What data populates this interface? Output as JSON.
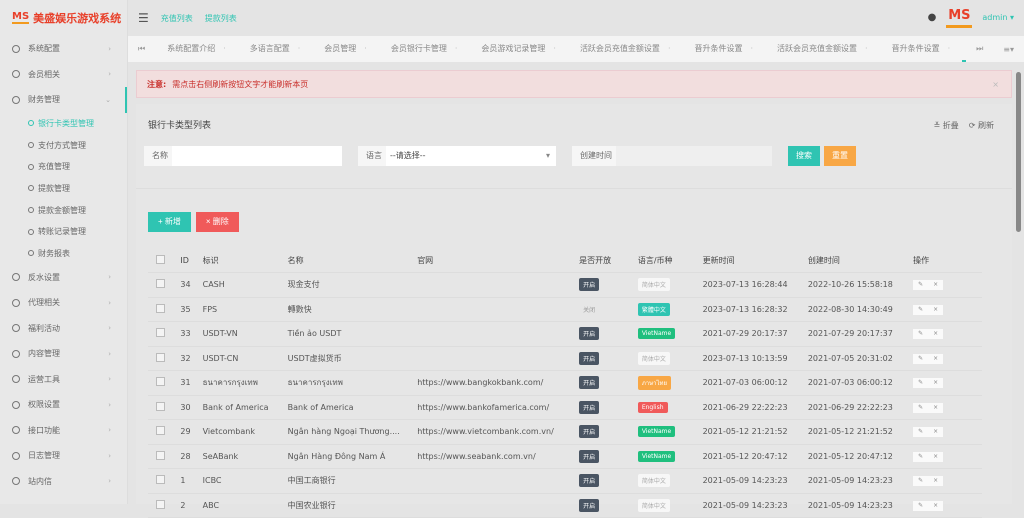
{
  "app": {
    "logo_mark": "MS",
    "title": "美盛娱乐游戏系统"
  },
  "header": {
    "links": [
      "充值列表",
      "提款列表"
    ],
    "user": "admin ▾",
    "avatar_mark": "MS"
  },
  "sidebar": {
    "items": [
      {
        "label": "系统配置"
      },
      {
        "label": "会员相关"
      },
      {
        "label": "财务管理",
        "open": true,
        "children": [
          "银行卡类型管理",
          "支付方式管理",
          "充值管理",
          "提款管理",
          "提款金额管理",
          "转账记录管理",
          "财务报表"
        ]
      },
      {
        "label": "反水设置"
      },
      {
        "label": "代理相关"
      },
      {
        "label": "福利活动"
      },
      {
        "label": "内容管理"
      },
      {
        "label": "运营工具"
      },
      {
        "label": "权限设置"
      },
      {
        "label": "接口功能"
      },
      {
        "label": "日志管理"
      },
      {
        "label": "站内信"
      }
    ]
  },
  "tabs": [
    "系统配置介绍",
    "多语言配置",
    "会员管理",
    "会员银行卡管理",
    "会员游戏记录管理",
    "活跃会员充值金额设置",
    "晋升条件设置",
    "活跃会员充值金额设置",
    "晋升条件设置",
    "银行卡类型管理"
  ],
  "alert": {
    "prefix": "注意:",
    "text": "需点击右侧刷新按钮文字才能刷新本页"
  },
  "panel": {
    "title": "银行卡类型列表",
    "collapse": "≚ 折叠",
    "refresh": "⟳ 刷新"
  },
  "search": {
    "name_label": "名称",
    "name_value": "",
    "lang_label": "语言",
    "lang_value": "--请选择--",
    "date_label": "创建时间",
    "date_value": "",
    "search_btn": "搜索",
    "reset_btn": "重置"
  },
  "actions": {
    "add": "+ 新增",
    "delete": "× 删除"
  },
  "colors": {
    "accent": "#2fc4b2",
    "danger": "#f05a5a",
    "warning": "#f8a745",
    "dark": "#4a5563",
    "green": "#1fbf7e"
  },
  "table": {
    "headers": [
      "ID",
      "标识",
      "名称",
      "官网",
      "是否开放",
      "语言/币种",
      "更新时间",
      "创建时间",
      "操作"
    ],
    "rows": [
      [
        "34",
        "CASH",
        "现金支付",
        "",
        "开启",
        "简体中文",
        "2023-07-13 16:28:44",
        "2022-10-26 15:58:18"
      ],
      [
        "35",
        "FPS",
        "轉數快",
        "",
        "关闭",
        "繁體中文",
        "2023-07-13 16:28:32",
        "2022-08-30 14:30:49"
      ],
      [
        "33",
        "USDT-VN",
        "Tiền ảo USDT",
        "",
        "开启",
        "VietName",
        "2021-07-29 20:17:37",
        "2021-07-29 20:17:37"
      ],
      [
        "32",
        "USDT-CN",
        "USDT虚拟货币",
        "",
        "开启",
        "简体中文",
        "2023-07-13 10:13:59",
        "2021-07-05 20:31:02"
      ],
      [
        "31",
        "ธนาคารกรุงเทพ",
        "ธนาคารกรุงเทพ",
        "https://www.bangkokbank.com/",
        "开启",
        "ภาษาไทย",
        "2021-07-03 06:00:12",
        "2021-07-03 06:00:12"
      ],
      [
        "30",
        "Bank of America",
        "Bank of America",
        "https://www.bankofamerica.com/",
        "开启",
        "English",
        "2021-06-29 22:22:23",
        "2021-06-29 22:22:23"
      ],
      [
        "29",
        "Vietcombank",
        "Ngân hàng Ngoại Thương....",
        "https://www.vietcombank.com.vn/",
        "开启",
        "VietName",
        "2021-05-12 21:21:52",
        "2021-05-12 21:21:52"
      ],
      [
        "28",
        "SeABank",
        "Ngân Hàng Đông Nam Á",
        "https://www.seabank.com.vn/",
        "开启",
        "VietName",
        "2021-05-12 20:47:12",
        "2021-05-12 20:47:12"
      ],
      [
        "1",
        "ICBC",
        "中国工商银行",
        "",
        "开启",
        "简体中文",
        "2021-05-09 14:23:23",
        "2021-05-09 14:23:23"
      ],
      [
        "2",
        "ABC",
        "中国农业银行",
        "",
        "开启",
        "简体中文",
        "2021-05-09 14:23:23",
        "2021-05-09 14:23:23"
      ]
    ]
  }
}
